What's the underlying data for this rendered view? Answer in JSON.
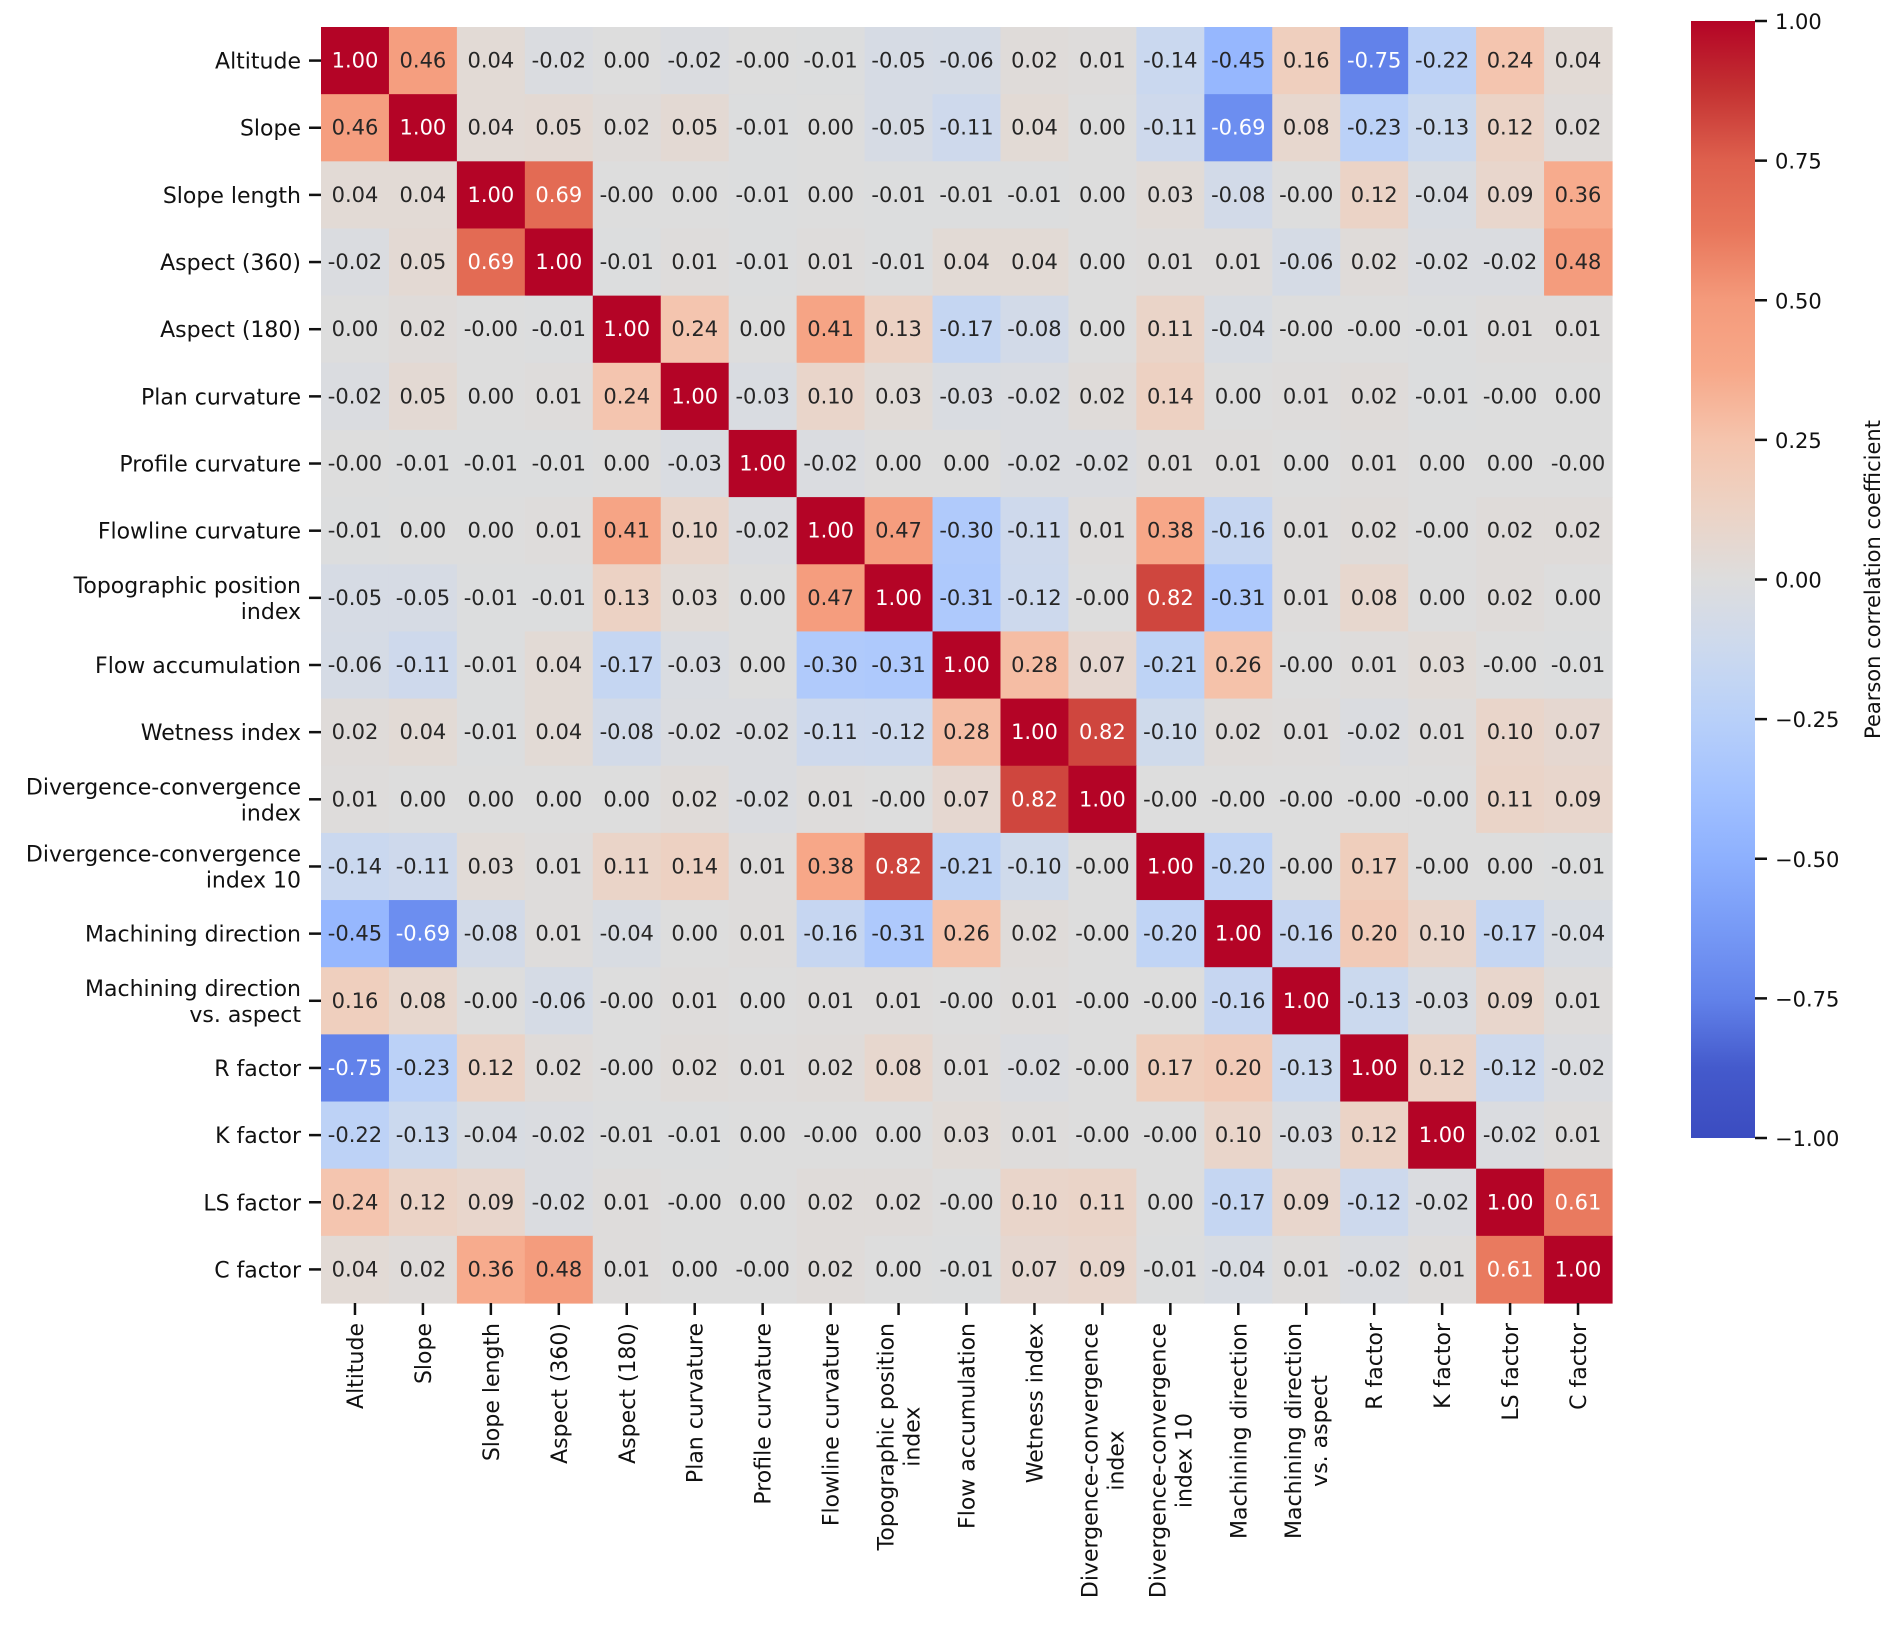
{
  "chart_data": {
    "type": "heatmap",
    "title": "",
    "colormap": "coolwarm",
    "vmin": -1.0,
    "vmax": 1.0,
    "annotation_format": "0.00",
    "labels": [
      [
        "Altitude"
      ],
      [
        "Slope"
      ],
      [
        "Slope length"
      ],
      [
        "Aspect (360)"
      ],
      [
        "Aspect (180)"
      ],
      [
        "Plan curvature"
      ],
      [
        "Profile curvature"
      ],
      [
        "Flowline curvature"
      ],
      [
        "Topographic position",
        "index"
      ],
      [
        "Flow accumulation"
      ],
      [
        "Wetness index"
      ],
      [
        "Divergence-convergence",
        "index"
      ],
      [
        "Divergence-convergence",
        "index 10"
      ],
      [
        "Machining direction"
      ],
      [
        "Machining direction",
        "vs. aspect"
      ],
      [
        "R factor"
      ],
      [
        "K factor"
      ],
      [
        "LS factor"
      ],
      [
        "C factor"
      ]
    ],
    "matrix": [
      [
        "1.00",
        "0.46",
        "0.04",
        "-0.02",
        "0.00",
        "-0.02",
        "-0.00",
        "-0.01",
        "-0.05",
        "-0.06",
        "0.02",
        "0.01",
        "-0.14",
        "-0.45",
        "0.16",
        "-0.75",
        "-0.22",
        "0.24",
        "0.04"
      ],
      [
        "0.46",
        "1.00",
        "0.04",
        "0.05",
        "0.02",
        "0.05",
        "-0.01",
        "0.00",
        "-0.05",
        "-0.11",
        "0.04",
        "0.00",
        "-0.11",
        "-0.69",
        "0.08",
        "-0.23",
        "-0.13",
        "0.12",
        "0.02"
      ],
      [
        "0.04",
        "0.04",
        "1.00",
        "0.69",
        "-0.00",
        "0.00",
        "-0.01",
        "0.00",
        "-0.01",
        "-0.01",
        "-0.01",
        "0.00",
        "0.03",
        "-0.08",
        "-0.00",
        "0.12",
        "-0.04",
        "0.09",
        "0.36"
      ],
      [
        "-0.02",
        "0.05",
        "0.69",
        "1.00",
        "-0.01",
        "0.01",
        "-0.01",
        "0.01",
        "-0.01",
        "0.04",
        "0.04",
        "0.00",
        "0.01",
        "0.01",
        "-0.06",
        "0.02",
        "-0.02",
        "-0.02",
        "0.48"
      ],
      [
        "0.00",
        "0.02",
        "-0.00",
        "-0.01",
        "1.00",
        "0.24",
        "0.00",
        "0.41",
        "0.13",
        "-0.17",
        "-0.08",
        "0.00",
        "0.11",
        "-0.04",
        "-0.00",
        "-0.00",
        "-0.01",
        "0.01",
        "0.01"
      ],
      [
        "-0.02",
        "0.05",
        "0.00",
        "0.01",
        "0.24",
        "1.00",
        "-0.03",
        "0.10",
        "0.03",
        "-0.03",
        "-0.02",
        "0.02",
        "0.14",
        "0.00",
        "0.01",
        "0.02",
        "-0.01",
        "-0.00",
        "0.00"
      ],
      [
        "-0.00",
        "-0.01",
        "-0.01",
        "-0.01",
        "0.00",
        "-0.03",
        "1.00",
        "-0.02",
        "0.00",
        "0.00",
        "-0.02",
        "-0.02",
        "0.01",
        "0.01",
        "0.00",
        "0.01",
        "0.00",
        "0.00",
        "-0.00"
      ],
      [
        "-0.01",
        "0.00",
        "0.00",
        "0.01",
        "0.41",
        "0.10",
        "-0.02",
        "1.00",
        "0.47",
        "-0.30",
        "-0.11",
        "0.01",
        "0.38",
        "-0.16",
        "0.01",
        "0.02",
        "-0.00",
        "0.02",
        "0.02"
      ],
      [
        "-0.05",
        "-0.05",
        "-0.01",
        "-0.01",
        "0.13",
        "0.03",
        "0.00",
        "0.47",
        "1.00",
        "-0.31",
        "-0.12",
        "-0.00",
        "0.82",
        "-0.31",
        "0.01",
        "0.08",
        "0.00",
        "0.02",
        "0.00"
      ],
      [
        "-0.06",
        "-0.11",
        "-0.01",
        "0.04",
        "-0.17",
        "-0.03",
        "0.00",
        "-0.30",
        "-0.31",
        "1.00",
        "0.28",
        "0.07",
        "-0.21",
        "0.26",
        "-0.00",
        "0.01",
        "0.03",
        "-0.00",
        "-0.01"
      ],
      [
        "0.02",
        "0.04",
        "-0.01",
        "0.04",
        "-0.08",
        "-0.02",
        "-0.02",
        "-0.11",
        "-0.12",
        "0.28",
        "1.00",
        "0.82",
        "-0.10",
        "0.02",
        "0.01",
        "-0.02",
        "0.01",
        "0.10",
        "0.07"
      ],
      [
        "0.01",
        "0.00",
        "0.00",
        "0.00",
        "0.00",
        "0.02",
        "-0.02",
        "0.01",
        "-0.00",
        "0.07",
        "0.82",
        "1.00",
        "-0.00",
        "-0.00",
        "-0.00",
        "-0.00",
        "-0.00",
        "0.11",
        "0.09"
      ],
      [
        "-0.14",
        "-0.11",
        "0.03",
        "0.01",
        "0.11",
        "0.14",
        "0.01",
        "0.38",
        "0.82",
        "-0.21",
        "-0.10",
        "-0.00",
        "1.00",
        "-0.20",
        "-0.00",
        "0.17",
        "-0.00",
        "0.00",
        "-0.01"
      ],
      [
        "-0.45",
        "-0.69",
        "-0.08",
        "0.01",
        "-0.04",
        "0.00",
        "0.01",
        "-0.16",
        "-0.31",
        "0.26",
        "0.02",
        "-0.00",
        "-0.20",
        "1.00",
        "-0.16",
        "0.20",
        "0.10",
        "-0.17",
        "-0.04"
      ],
      [
        "0.16",
        "0.08",
        "-0.00",
        "-0.06",
        "-0.00",
        "0.01",
        "0.00",
        "0.01",
        "0.01",
        "-0.00",
        "0.01",
        "-0.00",
        "-0.00",
        "-0.16",
        "1.00",
        "-0.13",
        "-0.03",
        "0.09",
        "0.01"
      ],
      [
        "-0.75",
        "-0.23",
        "0.12",
        "0.02",
        "-0.00",
        "0.02",
        "0.01",
        "0.02",
        "0.08",
        "0.01",
        "-0.02",
        "-0.00",
        "0.17",
        "0.20",
        "-0.13",
        "1.00",
        "0.12",
        "-0.12",
        "-0.02"
      ],
      [
        "-0.22",
        "-0.13",
        "-0.04",
        "-0.02",
        "-0.01",
        "-0.01",
        "0.00",
        "-0.00",
        "0.00",
        "0.03",
        "0.01",
        "-0.00",
        "-0.00",
        "0.10",
        "-0.03",
        "0.12",
        "1.00",
        "-0.02",
        "0.01"
      ],
      [
        "0.24",
        "0.12",
        "0.09",
        "-0.02",
        "0.01",
        "-0.00",
        "0.00",
        "0.02",
        "0.02",
        "-0.00",
        "0.10",
        "0.11",
        "0.00",
        "-0.17",
        "0.09",
        "-0.12",
        "-0.02",
        "1.00",
        "0.61"
      ],
      [
        "0.04",
        "0.02",
        "0.36",
        "0.48",
        "0.01",
        "0.00",
        "-0.00",
        "0.02",
        "0.00",
        "-0.01",
        "0.07",
        "0.09",
        "-0.01",
        "-0.04",
        "0.01",
        "-0.02",
        "0.01",
        "0.61",
        "1.00"
      ]
    ],
    "colorbar": {
      "label": "Pearson correlation coefficient",
      "ticks": [
        "1.00",
        "0.75",
        "0.50",
        "0.25",
        "0.00",
        "−0.25",
        "−0.50",
        "−0.75",
        "−1.00"
      ],
      "tick_values": [
        1.0,
        0.75,
        0.5,
        0.25,
        0.0,
        -0.25,
        -0.5,
        -0.75,
        -1.0
      ],
      "placement": "right"
    },
    "xlabel": "",
    "ylabel": "",
    "grid": false
  }
}
